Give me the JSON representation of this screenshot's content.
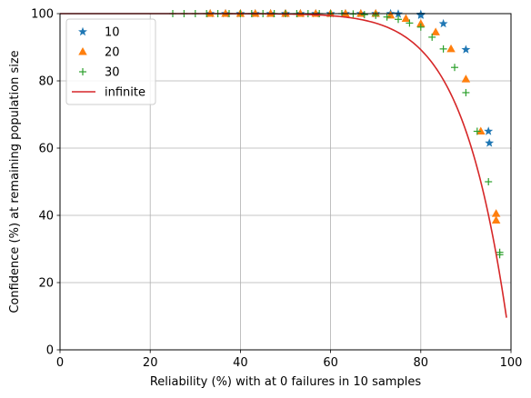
{
  "chart_data": {
    "type": "scatter",
    "title": "",
    "xlabel": "Reliability (%) with at 0 failures in 10 samples",
    "ylabel": "Confidence (%) at remaining population size",
    "xlim": [
      0,
      100
    ],
    "ylim": [
      0,
      100
    ],
    "xticks": [
      "0",
      "20",
      "40",
      "60",
      "80",
      "100"
    ],
    "yticks": [
      "0",
      "20",
      "40",
      "60",
      "80",
      "100"
    ],
    "grid": true,
    "legend_position": "top-left",
    "series": [
      {
        "name": "10",
        "marker": "star",
        "color": "#1f77b4",
        "x": [
          33.3,
          36.7,
          40,
          43.3,
          46.7,
          50,
          53.3,
          56.7,
          60,
          63.3,
          66.7,
          70,
          73.3,
          75,
          80,
          80,
          85,
          90,
          95,
          95.2
        ],
        "y": [
          100,
          100,
          100,
          100,
          100,
          100,
          100,
          100,
          100,
          100,
          100,
          100,
          100,
          99.9,
          99.8,
          99.5,
          97,
          89.3,
          65,
          61.5
        ]
      },
      {
        "name": "20",
        "marker": "triangle",
        "color": "#ff7f0e",
        "x": [
          33.3,
          36.7,
          40,
          43.3,
          46.7,
          50,
          53.3,
          56.7,
          60,
          63.3,
          66.7,
          70,
          73.3,
          76.7,
          80,
          83.3,
          86.7,
          90,
          93.3,
          96.7,
          96.7
        ],
        "y": [
          100,
          100,
          100,
          100,
          100,
          100,
          100,
          100,
          100,
          100,
          100,
          100,
          99.5,
          98.5,
          97,
          94.5,
          89.5,
          80.5,
          65,
          40.5,
          38.5
        ]
      },
      {
        "name": "30",
        "marker": "plus",
        "color": "#2ca02c",
        "x": [
          25,
          27.5,
          30,
          32.5,
          35,
          37.5,
          40,
          42.5,
          45,
          47.5,
          50,
          52.5,
          55,
          57.5,
          60,
          62.5,
          65,
          67.5,
          70,
          72.5,
          75,
          77.5,
          80,
          82.5,
          85,
          87.5,
          90,
          92.5,
          95,
          97.5,
          97.5
        ],
        "y": [
          100,
          100,
          100,
          100,
          100,
          100,
          100,
          100,
          100,
          100,
          100,
          100,
          100,
          100,
          100,
          100,
          99.9,
          99.7,
          99.5,
          99,
          98.3,
          97.2,
          96,
          93,
          89.5,
          84,
          76.5,
          65,
          50,
          29,
          28.3
        ]
      },
      {
        "name": "infinite",
        "marker": "line",
        "color": "#d62728",
        "formula": "1 - (x/100)^10",
        "x_range": [
          0,
          99
        ]
      }
    ]
  }
}
